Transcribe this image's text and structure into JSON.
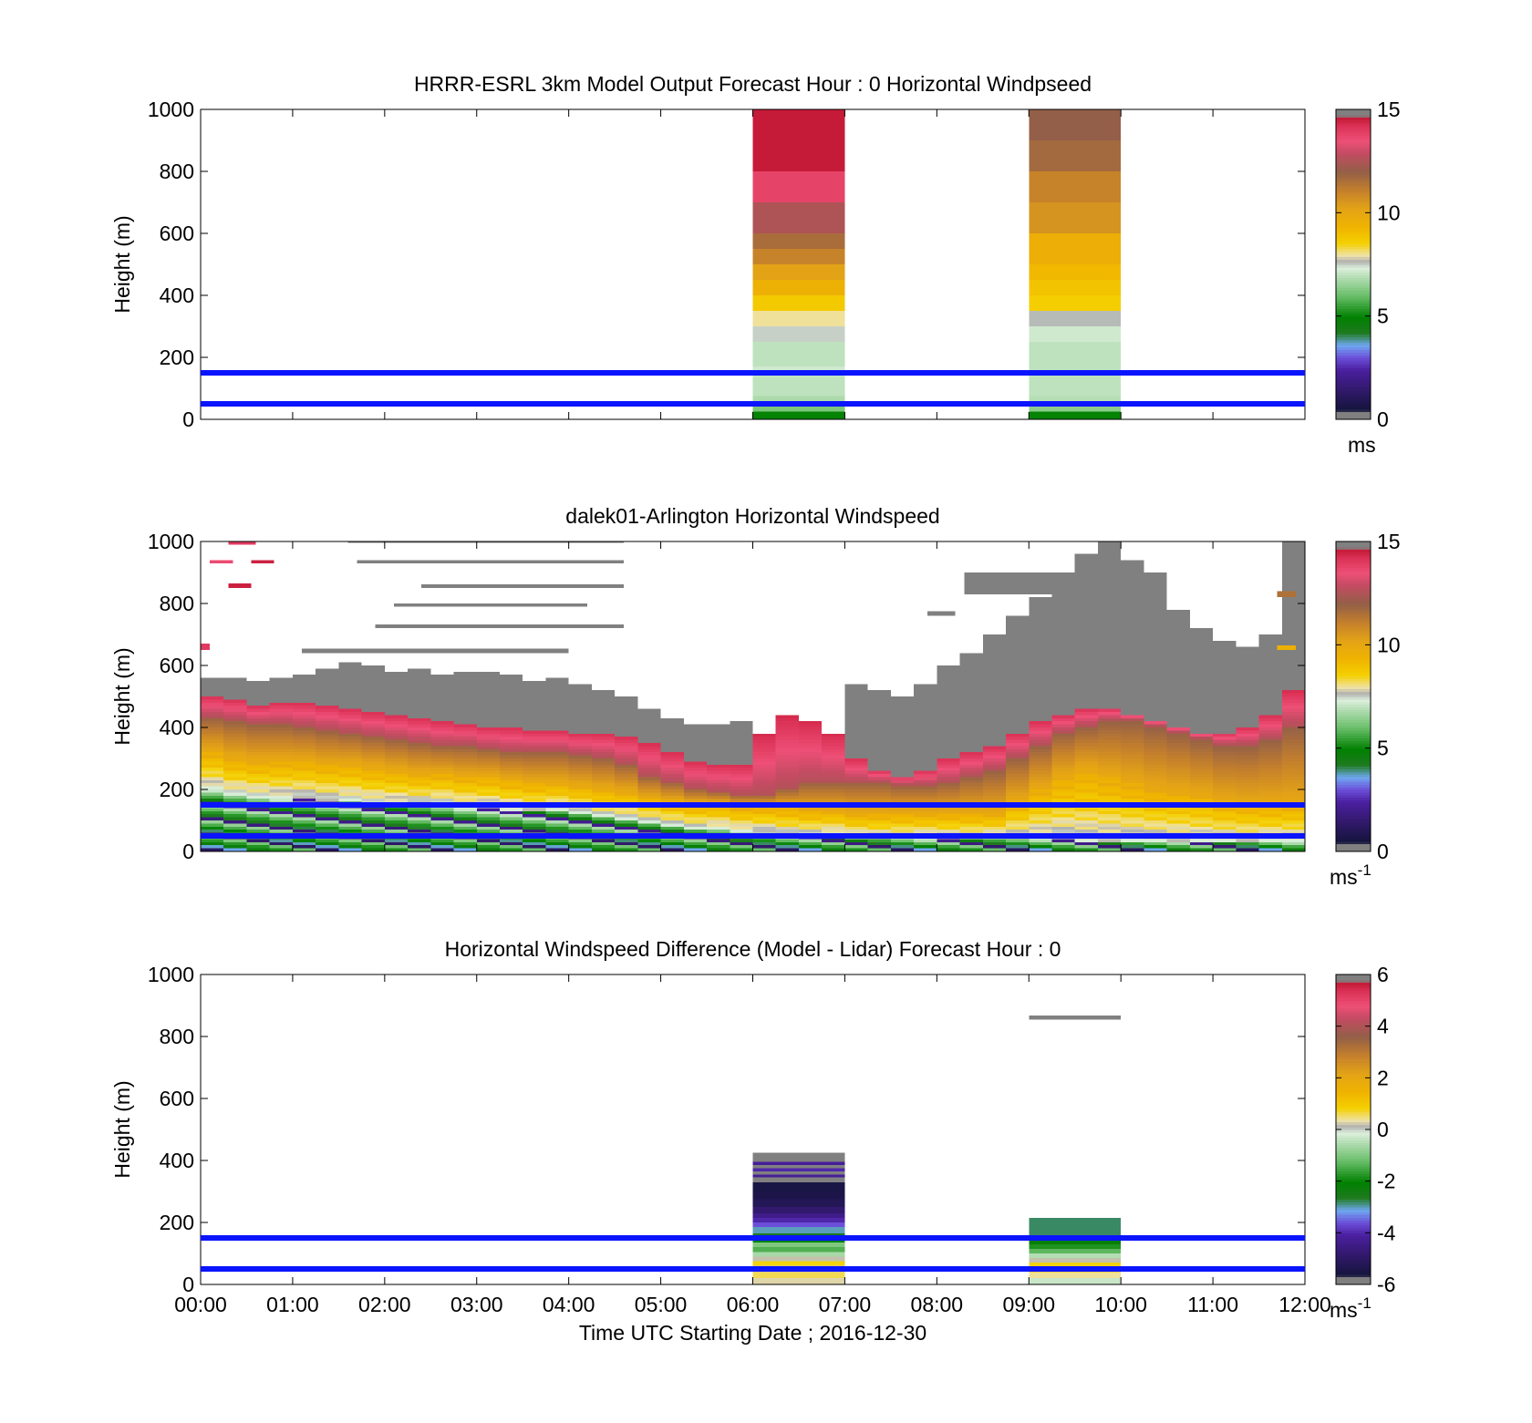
{
  "chart_data": [
    {
      "type": "heatmap",
      "title": "HRRR-ESRL 3km Model Output   Forecast Hour : 0 Horizontal Windpseed",
      "ylabel": "Height (m)",
      "xlabel": "",
      "ylim": [
        0,
        1000
      ],
      "xlim": [
        0,
        12
      ],
      "yticks": [
        "0",
        "200",
        "400",
        "600",
        "800",
        "1000"
      ],
      "xticks": [],
      "grid": false,
      "colorbar": {
        "ticks": [
          "0",
          "5",
          "10",
          "15"
        ],
        "range": [
          0,
          15
        ],
        "unit": "ms",
        "unit_sup": ""
      },
      "hlines_m": [
        50,
        150
      ],
      "columns": [
        {
          "t0": 6,
          "t1": 7,
          "cells": [
            [
              0,
              25,
              5.0
            ],
            [
              25,
              45,
              6.2
            ],
            [
              45,
              75,
              6.8
            ],
            [
              75,
              110,
              7.0
            ],
            [
              110,
              140,
              7.0
            ],
            [
              140,
              170,
              7.2
            ],
            [
              170,
              200,
              7.0
            ],
            [
              200,
              250,
              7.0
            ],
            [
              250,
              300,
              7.5
            ],
            [
              300,
              350,
              8.0
            ],
            [
              350,
              400,
              8.7
            ],
            [
              400,
              450,
              9.5
            ],
            [
              450,
              500,
              10.2
            ],
            [
              500,
              550,
              11.0
            ],
            [
              550,
              600,
              11.6
            ],
            [
              600,
              700,
              12.5
            ],
            [
              700,
              800,
              13.8
            ],
            [
              800,
              1000,
              14.6
            ]
          ]
        },
        {
          "t0": 9,
          "t1": 10,
          "cells": [
            [
              0,
              25,
              5.0
            ],
            [
              25,
              45,
              6.4
            ],
            [
              45,
              75,
              6.9
            ],
            [
              75,
              140,
              7.0
            ],
            [
              140,
              200,
              7.0
            ],
            [
              200,
              250,
              7.0
            ],
            [
              250,
              300,
              7.2
            ],
            [
              300,
              350,
              7.6
            ],
            [
              350,
              400,
              8.6
            ],
            [
              400,
              450,
              8.9
            ],
            [
              450,
              500,
              9.2
            ],
            [
              500,
              600,
              9.6
            ],
            [
              600,
              700,
              10.6
            ],
            [
              700,
              800,
              11.0
            ],
            [
              800,
              900,
              11.7
            ],
            [
              900,
              1000,
              12.0
            ]
          ]
        }
      ]
    },
    {
      "type": "heatmap",
      "title": "dalek01-Arlington  Horizontal Windspeed",
      "ylabel": "Height (m)",
      "xlabel": "",
      "ylim": [
        0,
        1000
      ],
      "xlim": [
        0,
        12
      ],
      "yticks": [
        "0",
        "200",
        "400",
        "600",
        "800",
        "1000"
      ],
      "xticks": [],
      "grid": false,
      "colorbar": {
        "ticks": [
          "0",
          "5",
          "10",
          "15"
        ],
        "range": [
          0,
          15
        ],
        "unit": "ms",
        "unit_sup": "-1"
      },
      "hlines_m": [
        50,
        150
      ],
      "profiles": {
        "dt_h": 0.25,
        "note_units": "top height of each layer band in metres",
        "h_green": [
          200,
          180,
          170,
          170,
          170,
          160,
          160,
          150,
          150,
          150,
          150,
          140,
          140,
          130,
          130,
          130,
          120,
          110,
          100,
          90,
          80,
          70,
          70,
          60,
          60,
          50,
          50,
          50,
          40,
          40,
          40,
          40,
          40,
          40,
          40,
          40,
          40,
          40,
          30,
          30,
          30,
          30,
          30,
          30,
          30,
          30,
          30,
          30
        ],
        "h_yellow": [
          320,
          300,
          290,
          290,
          290,
          280,
          280,
          270,
          260,
          250,
          250,
          240,
          240,
          230,
          220,
          220,
          210,
          200,
          190,
          170,
          160,
          150,
          150,
          140,
          140,
          140,
          130,
          130,
          120,
          120,
          120,
          120,
          120,
          120,
          120,
          160,
          200,
          240,
          260,
          240,
          220,
          200,
          190,
          180,
          160,
          150,
          150,
          150
        ],
        "h_brown": [
          430,
          420,
          410,
          410,
          400,
          390,
          380,
          370,
          360,
          350,
          340,
          340,
          330,
          320,
          320,
          320,
          310,
          300,
          280,
          240,
          220,
          200,
          190,
          180,
          180,
          200,
          220,
          220,
          220,
          220,
          210,
          210,
          220,
          240,
          260,
          300,
          340,
          380,
          400,
          420,
          420,
          400,
          380,
          360,
          340,
          340,
          360,
          400
        ],
        "h_red": [
          500,
          490,
          470,
          480,
          480,
          470,
          460,
          450,
          440,
          430,
          420,
          410,
          400,
          400,
          390,
          390,
          380,
          380,
          370,
          350,
          320,
          290,
          280,
          280,
          380,
          440,
          420,
          380,
          300,
          260,
          240,
          260,
          300,
          320,
          340,
          380,
          420,
          440,
          460,
          460,
          440,
          420,
          400,
          380,
          380,
          400,
          440,
          520
        ],
        "h_gray": [
          560,
          560,
          550,
          560,
          570,
          590,
          610,
          600,
          580,
          590,
          570,
          580,
          580,
          570,
          550,
          560,
          540,
          520,
          500,
          460,
          430,
          410,
          410,
          420,
          0,
          0,
          0,
          0,
          540,
          520,
          500,
          540,
          600,
          640,
          700,
          760,
          820,
          900,
          960,
          1000,
          940,
          860,
          780,
          720,
          680,
          660,
          700,
          1000
        ]
      },
      "specks": [
        {
          "t0": 0.3,
          "t1": 0.6,
          "h0": 990,
          "h1": 1000,
          "v": 14
        },
        {
          "t0": 0.1,
          "t1": 0.35,
          "h0": 930,
          "h1": 940,
          "v": 13.6
        },
        {
          "t0": 0.55,
          "t1": 0.8,
          "h0": 930,
          "h1": 940,
          "v": 14.5
        },
        {
          "t0": 0.3,
          "t1": 0.55,
          "h0": 850,
          "h1": 865,
          "v": 14.5
        },
        {
          "t0": 1.6,
          "t1": 4.6,
          "h0": 995,
          "h1": 1000,
          "v": 15.2
        },
        {
          "t0": 1.7,
          "t1": 4.6,
          "h0": 930,
          "h1": 940,
          "v": 15.2
        },
        {
          "t0": 2.4,
          "t1": 4.6,
          "h0": 850,
          "h1": 862,
          "v": 15.2
        },
        {
          "t0": 2.1,
          "t1": 4.2,
          "h0": 790,
          "h1": 800,
          "v": 15.2
        },
        {
          "t0": 1.9,
          "t1": 4.6,
          "h0": 720,
          "h1": 733,
          "v": 15.2
        },
        {
          "t0": 1.1,
          "t1": 4.0,
          "h0": 640,
          "h1": 655,
          "v": 15.2
        },
        {
          "t0": 7.9,
          "t1": 8.2,
          "h0": 760,
          "h1": 775,
          "v": 15.2
        },
        {
          "t0": 8.3,
          "t1": 10.5,
          "h0": 830,
          "h1": 900,
          "v": 15.2
        },
        {
          "t0": 9.2,
          "t1": 10.2,
          "h0": 700,
          "h1": 800,
          "v": 15.2
        },
        {
          "t0": 11.7,
          "t1": 11.9,
          "h0": 820,
          "h1": 840,
          "v": 11.5
        },
        {
          "t0": 11.7,
          "t1": 11.9,
          "h0": 650,
          "h1": 665,
          "v": 9.5
        },
        {
          "t0": 0.0,
          "t1": 0.1,
          "h0": 650,
          "h1": 670,
          "v": 14.0
        }
      ]
    },
    {
      "type": "heatmap",
      "title": "Horizontal Windspeed Difference (Model - Lidar) Forecast Hour : 0",
      "ylabel": "Height (m)",
      "xlabel": "Time UTC  Starting Date ; 2016-12-30",
      "ylim": [
        0,
        1000
      ],
      "xlim": [
        0,
        12
      ],
      "yticks": [
        "0",
        "200",
        "400",
        "600",
        "800",
        "1000"
      ],
      "xticks": [
        "00:00",
        "01:00",
        "02:00",
        "03:00",
        "04:00",
        "05:00",
        "06:00",
        "07:00",
        "08:00",
        "09:00",
        "10:00",
        "11:00",
        "12:00"
      ],
      "grid": false,
      "colorbar": {
        "ticks": [
          "-6",
          "-4",
          "-2",
          "0",
          "2",
          "4",
          "6"
        ],
        "range": [
          -6,
          6
        ],
        "unit": "ms",
        "unit_sup": "-1"
      },
      "hlines_m": [
        50,
        150
      ],
      "columns": [
        {
          "t0": 6,
          "t1": 7,
          "cells": [
            [
              0,
              20,
              0.3
            ],
            [
              20,
              40,
              0.6
            ],
            [
              40,
              60,
              0.2
            ],
            [
              60,
              75,
              0.8
            ],
            [
              75,
              90,
              0.2
            ],
            [
              90,
              105,
              -0.6
            ],
            [
              105,
              120,
              -1.4
            ],
            [
              120,
              135,
              -1.0
            ],
            [
              135,
              150,
              -2.0
            ],
            [
              150,
              165,
              -2.6
            ],
            [
              165,
              185,
              -3.0
            ],
            [
              185,
              200,
              -3.6
            ],
            [
              200,
              215,
              -4.0
            ],
            [
              215,
              230,
              -4.4
            ],
            [
              230,
              250,
              -4.8
            ],
            [
              250,
              275,
              -5.2
            ],
            [
              275,
              300,
              -5.4
            ],
            [
              300,
              330,
              -5.5
            ],
            [
              330,
              345,
              -5.8
            ],
            [
              345,
              355,
              -4.2
            ],
            [
              355,
              365,
              -5.8
            ],
            [
              365,
              375,
              -4.0
            ],
            [
              375,
              385,
              -5.8
            ],
            [
              385,
              395,
              -4.2
            ],
            [
              395,
              405,
              -5.9
            ],
            [
              405,
              425,
              -6.2
            ]
          ]
        },
        {
          "t0": 9,
          "t1": 10,
          "cells": [
            [
              0,
              20,
              -0.3
            ],
            [
              20,
              40,
              0.4
            ],
            [
              40,
              55,
              1.2
            ],
            [
              55,
              70,
              0.8
            ],
            [
              70,
              85,
              0.2
            ],
            [
              85,
              100,
              -0.5
            ],
            [
              100,
              115,
              -1.3
            ],
            [
              115,
              130,
              -1.8
            ],
            [
              130,
              150,
              -2.2
            ],
            [
              150,
              215,
              -2.8
            ]
          ]
        },
        {
          "t0": 9,
          "t1": 10,
          "cells": [
            [
              855,
              868,
              6.3
            ]
          ]
        }
      ]
    }
  ]
}
